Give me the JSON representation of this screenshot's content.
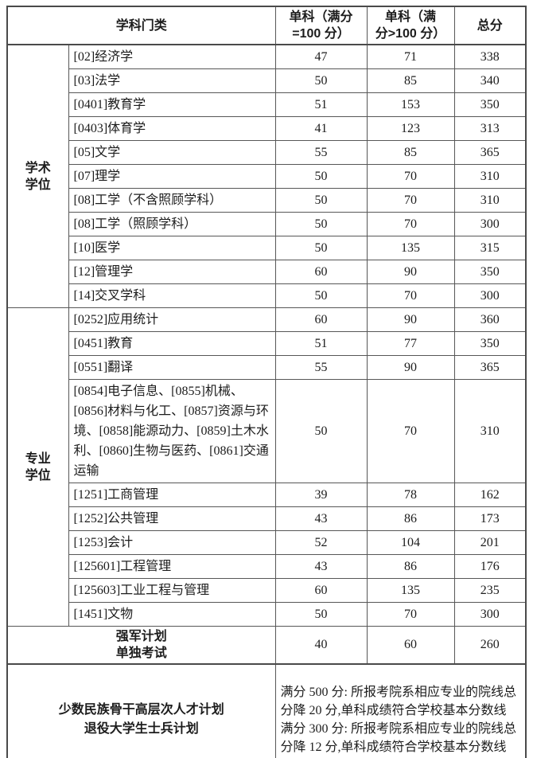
{
  "table": {
    "header": {
      "category": "学科门类",
      "single_100": "单科（满分\n=100 分）",
      "single_gt100": "单科（满\n分>100 分）",
      "total": "总分"
    },
    "sections": [
      {
        "label": "学术\n学位",
        "rows": [
          {
            "name": "[02]经济学",
            "s100": "47",
            "sg100": "71",
            "total": "338"
          },
          {
            "name": "[03]法学",
            "s100": "50",
            "sg100": "85",
            "total": "340"
          },
          {
            "name": "[0401]教育学",
            "s100": "51",
            "sg100": "153",
            "total": "350"
          },
          {
            "name": "[0403]体育学",
            "s100": "41",
            "sg100": "123",
            "total": "313"
          },
          {
            "name": "[05]文学",
            "s100": "55",
            "sg100": "85",
            "total": "365"
          },
          {
            "name": "[07]理学",
            "s100": "50",
            "sg100": "70",
            "total": "310"
          },
          {
            "name": "[08]工学（不含照顾学科）",
            "s100": "50",
            "sg100": "70",
            "total": "310"
          },
          {
            "name": "[08]工学（照顾学科）",
            "s100": "50",
            "sg100": "70",
            "total": "300"
          },
          {
            "name": "[10]医学",
            "s100": "50",
            "sg100": "135",
            "total": "315"
          },
          {
            "name": "[12]管理学",
            "s100": "60",
            "sg100": "90",
            "total": "350"
          },
          {
            "name": "[14]交叉学科",
            "s100": "50",
            "sg100": "70",
            "total": "300"
          }
        ]
      },
      {
        "label": "专业\n学位",
        "rows": [
          {
            "name": "[0252]应用统计",
            "s100": "60",
            "sg100": "90",
            "total": "360"
          },
          {
            "name": "[0451]教育",
            "s100": "51",
            "sg100": "77",
            "total": "350"
          },
          {
            "name": "[0551]翻译",
            "s100": "55",
            "sg100": "90",
            "total": "365"
          },
          {
            "name": "[0854]电子信息、[0855]机械、[0856]材料与化工、[0857]资源与环境、[0858]能源动力、[0859]土木水利、[0860]生物与医药、[0861]交通运输",
            "s100": "50",
            "sg100": "70",
            "total": "310"
          },
          {
            "name": "[1251]工商管理",
            "s100": "39",
            "sg100": "78",
            "total": "162"
          },
          {
            "name": "[1252]公共管理",
            "s100": "43",
            "sg100": "86",
            "total": "173"
          },
          {
            "name": "[1253]会计",
            "s100": "52",
            "sg100": "104",
            "total": "201"
          },
          {
            "name": "[125601]工程管理",
            "s100": "43",
            "sg100": "86",
            "total": "176"
          },
          {
            "name": "[125603]工业工程与管理",
            "s100": "60",
            "sg100": "135",
            "total": "235"
          },
          {
            "name": "[1451]文物",
            "s100": "50",
            "sg100": "70",
            "total": "300"
          }
        ]
      }
    ],
    "special_row": {
      "label": "强军计划\n单独考试",
      "s100": "40",
      "sg100": "60",
      "total": "260"
    },
    "bottom_row": {
      "label": "少数民族骨干高层次人才计划\n退役大学生士兵计划",
      "note": "满分 500 分: 所报考院系相应专业的院线总分降 20 分,单科成绩符合学校基本分数线\n满分 300 分: 所报考院系相应专业的院线总分降 12 分,单科成绩符合学校基本分数线"
    }
  }
}
